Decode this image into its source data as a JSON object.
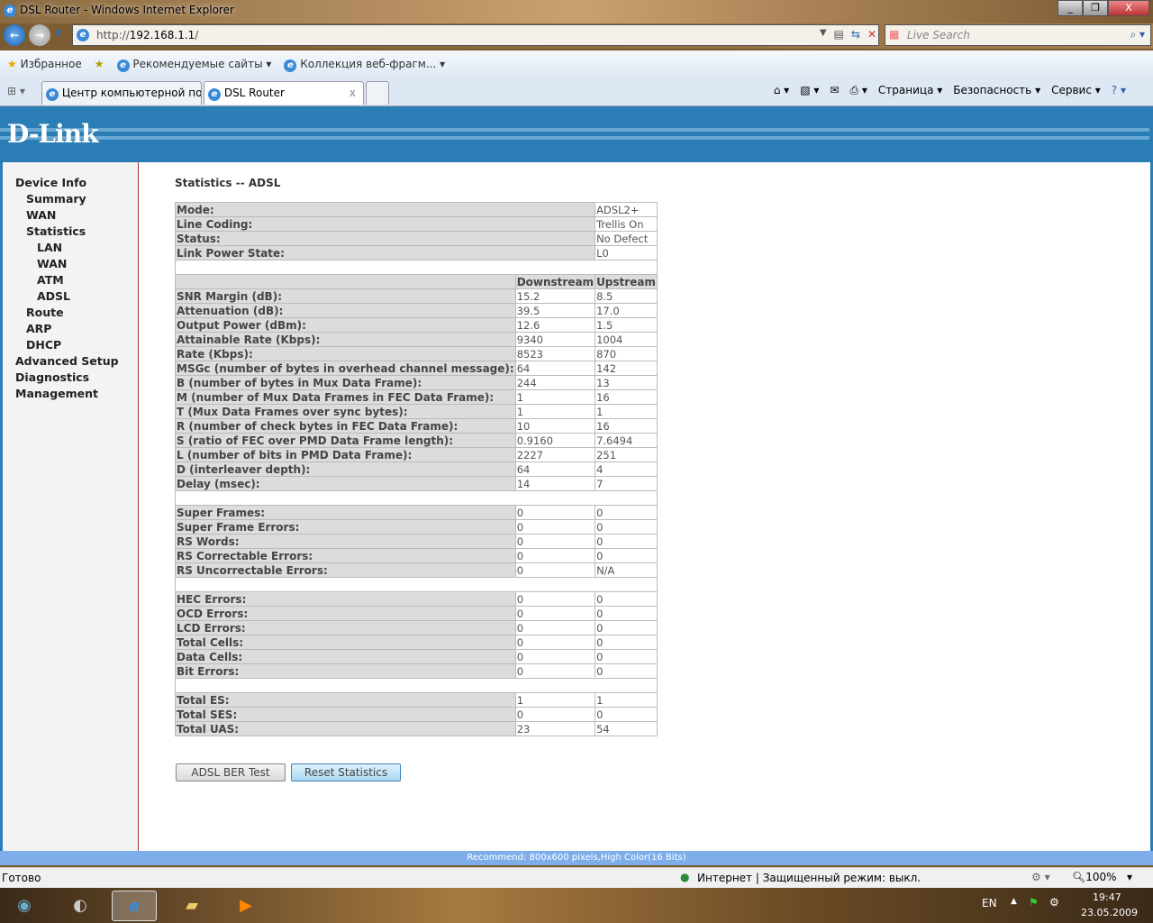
{
  "window": {
    "title": "DSL Router - Windows Internet Explorer",
    "minimize": "_",
    "restore": "❐",
    "close": "X"
  },
  "address": {
    "prefix": "http://",
    "host": "192.168.1.1",
    "suffix": "/",
    "search_placeholder": "Live Search"
  },
  "favorites": {
    "label": "Избранное",
    "items": [
      "Рекомендуемые сайты ▾",
      "Коллекция веб-фрагм... ▾"
    ]
  },
  "tabs": [
    {
      "label": "Центр компьютерной по..."
    },
    {
      "label": "DSL Router",
      "close": "x"
    }
  ],
  "commandbar": {
    "page": "Страница ▾",
    "safety": "Безопасность ▾",
    "tools": "Сервис ▾",
    "help": "? ▾"
  },
  "logo": "D-Link",
  "sidebar": [
    {
      "label": "Device Info",
      "level": 0
    },
    {
      "label": "Summary",
      "level": 1
    },
    {
      "label": "WAN",
      "level": 1
    },
    {
      "label": "Statistics",
      "level": 1
    },
    {
      "label": "LAN",
      "level": 2
    },
    {
      "label": "WAN",
      "level": 2
    },
    {
      "label": "ATM",
      "level": 2
    },
    {
      "label": "ADSL",
      "level": 2
    },
    {
      "label": "Route",
      "level": 1
    },
    {
      "label": "ARP",
      "level": 1
    },
    {
      "label": "DHCP",
      "level": 1
    },
    {
      "label": "Advanced Setup",
      "level": 0
    },
    {
      "label": "Diagnostics",
      "level": 0
    },
    {
      "label": "Management",
      "level": 0
    }
  ],
  "page_title": "Statistics -- ADSL",
  "status_rows": [
    [
      "Mode:",
      "ADSL2+"
    ],
    [
      "Line Coding:",
      "Trellis On"
    ],
    [
      "Status:",
      "No Defect"
    ],
    [
      "Link Power State:",
      "L0"
    ]
  ],
  "columns": [
    "",
    "Downstream",
    "Upstream"
  ],
  "sections": [
    [
      [
        "SNR Margin (dB):",
        "15.2",
        "8.5"
      ],
      [
        "Attenuation (dB):",
        "39.5",
        "17.0"
      ],
      [
        "Output Power (dBm):",
        "12.6",
        "1.5"
      ],
      [
        "Attainable Rate (Kbps):",
        "9340",
        "1004"
      ],
      [
        "Rate (Kbps):",
        "8523",
        "870"
      ],
      [
        "MSGc (number of bytes in overhead channel message):",
        "64",
        "142"
      ],
      [
        "B (number of bytes in Mux Data Frame):",
        "244",
        "13"
      ],
      [
        "M (number of Mux Data Frames in FEC Data Frame):",
        "1",
        "16"
      ],
      [
        "T (Mux Data Frames over sync bytes):",
        "1",
        "1"
      ],
      [
        "R (number of check bytes in FEC Data Frame):",
        "10",
        "16"
      ],
      [
        "S (ratio of FEC over PMD Data Frame length):",
        "0.9160",
        "7.6494"
      ],
      [
        "L (number of bits in PMD Data Frame):",
        "2227",
        "251"
      ],
      [
        "D (interleaver depth):",
        "64",
        "4"
      ],
      [
        "Delay (msec):",
        "14",
        "7"
      ]
    ],
    [
      [
        "Super Frames:",
        "0",
        "0"
      ],
      [
        "Super Frame Errors:",
        "0",
        "0"
      ],
      [
        "RS Words:",
        "0",
        "0"
      ],
      [
        "RS Correctable Errors:",
        "0",
        "0"
      ],
      [
        "RS Uncorrectable Errors:",
        "0",
        "N/A"
      ]
    ],
    [
      [
        "HEC Errors:",
        "0",
        "0"
      ],
      [
        "OCD Errors:",
        "0",
        "0"
      ],
      [
        "LCD Errors:",
        "0",
        "0"
      ],
      [
        "Total Cells:",
        "0",
        "0"
      ],
      [
        "Data Cells:",
        "0",
        "0"
      ],
      [
        "Bit Errors:",
        "0",
        "0"
      ]
    ],
    [
      [
        "Total ES:",
        "1",
        "1"
      ],
      [
        "Total SES:",
        "0",
        "0"
      ],
      [
        "Total UAS:",
        "23",
        "54"
      ]
    ]
  ],
  "buttons": {
    "ber_test": "ADSL BER Test",
    "reset": "Reset Statistics"
  },
  "recommend": "Recommend: 800x600 pixels,High Color(16 Bits)",
  "statusbar": {
    "status": "Готово",
    "zone": "Интернет | Защищенный режим: выкл.",
    "zoom": "100%"
  },
  "taskbar": {
    "lang": "EN",
    "time": "19:47",
    "date": "23.05.2009"
  }
}
